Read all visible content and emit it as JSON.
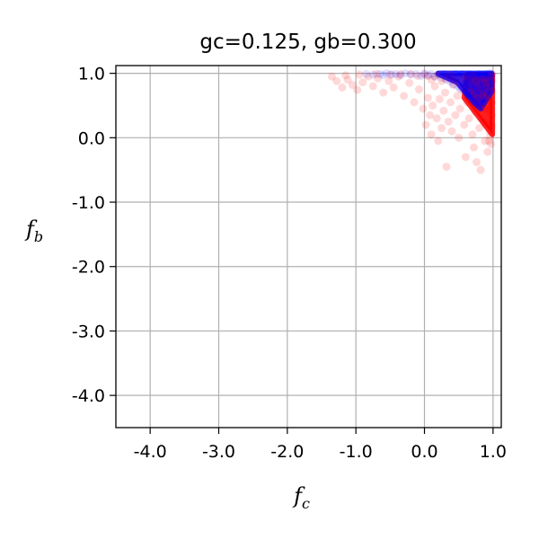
{
  "chart_data": {
    "type": "scatter",
    "title": "gc=0.125, gb=0.300",
    "xlabel": {
      "base": "f",
      "sub": "c"
    },
    "ylabel": {
      "base": "f",
      "sub": "b"
    },
    "xlim": [
      -4.5,
      1.12
    ],
    "ylim": [
      -4.5,
      1.12
    ],
    "xticks": [
      -4.0,
      -3.0,
      -2.0,
      -1.0,
      0.0,
      1.0
    ],
    "yticks": [
      -4.0,
      -3.0,
      -2.0,
      -1.0,
      0.0,
      1.0
    ],
    "xtick_labels": [
      "-4.0",
      "-3.0",
      "-2.0",
      "-1.0",
      "0.0",
      "1.0"
    ],
    "ytick_labels": [
      "-4.0",
      "-3.0",
      "-2.0",
      "-1.0",
      "0.0",
      "1.0"
    ],
    "grid": true,
    "series": [
      {
        "color": "#ff0000",
        "alpha": 0.15,
        "points": [
          [
            -1.35,
            0.95
          ],
          [
            -1.28,
            0.88
          ],
          [
            -1.2,
            0.78
          ],
          [
            -1.12,
            0.9
          ],
          [
            -1.05,
            0.82
          ],
          [
            -0.98,
            0.74
          ],
          [
            -0.9,
            0.86
          ],
          [
            -0.82,
            0.95
          ],
          [
            -0.75,
            0.8
          ],
          [
            -0.68,
            0.92
          ],
          [
            -0.6,
            0.7
          ],
          [
            -0.52,
            0.88
          ],
          [
            -0.45,
            0.78
          ],
          [
            -0.38,
            0.95
          ],
          [
            -0.3,
            0.65
          ],
          [
            -0.22,
            0.85
          ],
          [
            -0.15,
            0.55
          ],
          [
            -0.08,
            0.75
          ],
          [
            -0.02,
            0.45
          ],
          [
            0.02,
            0.2
          ],
          [
            0.05,
            0.62
          ],
          [
            0.08,
            0.35
          ],
          [
            0.1,
            0.05
          ],
          [
            0.12,
            0.5
          ],
          [
            0.15,
            0.8
          ],
          [
            0.18,
            0.3
          ],
          [
            0.2,
            -0.05
          ],
          [
            0.22,
            0.6
          ],
          [
            0.25,
            0.15
          ],
          [
            0.28,
            0.42
          ],
          [
            0.3,
            0.7
          ],
          [
            0.32,
            -0.45
          ],
          [
            0.35,
            0.25
          ],
          [
            0.38,
            0.55
          ],
          [
            0.4,
            0.1
          ],
          [
            0.42,
            0.82
          ],
          [
            0.45,
            0.35
          ],
          [
            0.48,
            0.65
          ],
          [
            0.5,
            0.0
          ],
          [
            0.52,
            0.45
          ],
          [
            0.55,
            0.75
          ],
          [
            0.58,
            0.2
          ],
          [
            0.6,
            -0.3
          ],
          [
            0.62,
            0.55
          ],
          [
            0.65,
            0.3
          ],
          [
            0.68,
            0.85
          ],
          [
            0.7,
            0.05
          ],
          [
            0.72,
            -0.15
          ],
          [
            0.74,
            0.4
          ],
          [
            0.76,
            -0.38
          ],
          [
            0.78,
            0.62
          ],
          [
            0.8,
            0.15
          ],
          [
            0.82,
            -0.5
          ],
          [
            0.84,
            0.3
          ],
          [
            0.86,
            0.7
          ],
          [
            0.88,
            -0.05
          ],
          [
            0.9,
            0.45
          ],
          [
            0.92,
            -0.22
          ],
          [
            0.94,
            0.2
          ],
          [
            0.96,
            0.55
          ],
          [
            0.98,
            0.35
          ],
          [
            0.97,
            -0.1
          ],
          [
            0.95,
            0.1
          ],
          [
            0.93,
            0.6
          ],
          [
            0.91,
            0.8
          ],
          [
            0.89,
            0.5
          ],
          [
            0.87,
            0.25
          ],
          [
            0.85,
            0.65
          ],
          [
            0.83,
            0.45
          ],
          [
            0.81,
            0.9
          ],
          [
            0.79,
            0.78
          ],
          [
            0.77,
            0.52
          ],
          [
            0.75,
            0.88
          ],
          [
            0.73,
            0.68
          ],
          [
            0.71,
            0.95
          ],
          [
            0.69,
            0.58
          ],
          [
            0.67,
            0.72
          ],
          [
            0.99,
            0.72
          ],
          [
            0.99,
            0.88
          ],
          [
            0.97,
            0.95
          ],
          [
            0.95,
            0.78
          ],
          [
            0.93,
            0.9
          ],
          [
            0.91,
            0.65
          ],
          [
            0.89,
            0.85
          ],
          [
            0.87,
            0.92
          ],
          [
            0.96,
            0.45
          ],
          [
            0.94,
            0.3
          ],
          [
            0.92,
            0.42
          ],
          [
            0.9,
            0.2
          ],
          [
            0.88,
            0.38
          ],
          [
            0.98,
            0.55
          ],
          [
            0.98,
            0.18
          ],
          [
            0.96,
            0.02
          ],
          [
            0.94,
            -0.05
          ],
          [
            0.99,
            0.98
          ],
          [
            0.6,
            0.95
          ],
          [
            0.55,
            0.92
          ],
          [
            0.5,
            0.85
          ],
          [
            0.45,
            0.95
          ],
          [
            0.4,
            0.9
          ],
          [
            0.35,
            0.98
          ],
          [
            0.3,
            0.92
          ],
          [
            0.25,
            0.88
          ],
          [
            0.2,
            0.98
          ],
          [
            0.15,
            0.95
          ],
          [
            0.1,
            0.9
          ],
          [
            0.05,
            0.96
          ],
          [
            0.0,
            0.98
          ],
          [
            -0.1,
            0.96
          ],
          [
            -0.2,
            0.99
          ],
          [
            -0.35,
            0.99
          ],
          [
            -0.5,
            0.98
          ],
          [
            -0.7,
            0.99
          ],
          [
            -0.95,
            0.98
          ],
          [
            -1.15,
            0.97
          ]
        ]
      },
      {
        "color": "#0000ff",
        "alpha": 0.12,
        "points": [
          [
            -0.85,
            0.99
          ],
          [
            -0.75,
            0.98
          ],
          [
            -0.65,
            0.99
          ],
          [
            -0.6,
            0.97
          ],
          [
            -0.55,
            1.0
          ],
          [
            -0.48,
            0.98
          ],
          [
            -0.42,
            0.99
          ],
          [
            -0.35,
            0.97
          ],
          [
            -0.28,
            1.0
          ],
          [
            -0.2,
            0.98
          ],
          [
            -0.12,
            0.99
          ],
          [
            -0.05,
            0.96
          ],
          [
            0.0,
            1.0
          ],
          [
            0.05,
            0.97
          ],
          [
            0.1,
            0.99
          ],
          [
            0.15,
            0.95
          ],
          [
            0.2,
            0.98
          ],
          [
            0.25,
            0.93
          ],
          [
            0.28,
            0.99
          ],
          [
            0.32,
            0.9
          ],
          [
            0.35,
            0.97
          ],
          [
            0.38,
            0.87
          ],
          [
            0.4,
            0.95
          ],
          [
            0.42,
            0.83
          ],
          [
            0.45,
            0.92
          ],
          [
            0.48,
            0.8
          ],
          [
            0.5,
            0.96
          ],
          [
            0.52,
            0.76
          ],
          [
            0.55,
            0.9
          ],
          [
            0.58,
            0.72
          ],
          [
            0.6,
            0.86
          ],
          [
            0.62,
            0.68
          ],
          [
            0.64,
            0.93
          ],
          [
            0.66,
            0.64
          ],
          [
            0.68,
            0.82
          ],
          [
            0.7,
            0.6
          ],
          [
            0.72,
            0.88
          ],
          [
            0.74,
            0.56
          ],
          [
            0.75,
            0.75
          ],
          [
            0.76,
            0.95
          ],
          [
            0.78,
            0.52
          ],
          [
            0.8,
            0.7
          ],
          [
            0.82,
            0.88
          ],
          [
            0.84,
            0.62
          ],
          [
            0.86,
            0.8
          ],
          [
            0.88,
            0.96
          ],
          [
            0.9,
            0.74
          ],
          [
            0.92,
            0.9
          ],
          [
            0.94,
            0.82
          ],
          [
            0.96,
            0.95
          ],
          [
            0.97,
            0.86
          ],
          [
            0.98,
            0.99
          ],
          [
            0.65,
            0.99
          ],
          [
            0.7,
            0.97
          ],
          [
            0.8,
            0.99
          ],
          [
            0.85,
            0.97
          ],
          [
            0.9,
            0.99
          ],
          [
            0.95,
            1.0
          ],
          [
            0.55,
            0.99
          ],
          [
            0.45,
            0.99
          ]
        ]
      }
    ],
    "dense_regions": [
      {
        "color": "#ff0000",
        "polygon": [
          [
            0.58,
            0.62
          ],
          [
            0.99,
            0.05
          ],
          [
            0.99,
            0.98
          ],
          [
            0.62,
            0.98
          ]
        ]
      },
      {
        "color": "#0000ff",
        "polygon": [
          [
            0.2,
            0.99
          ],
          [
            0.48,
            0.86
          ],
          [
            0.72,
            0.55
          ],
          [
            0.82,
            0.45
          ],
          [
            0.98,
            0.72
          ],
          [
            0.98,
            1.0
          ],
          [
            0.2,
            1.0
          ]
        ]
      }
    ]
  }
}
